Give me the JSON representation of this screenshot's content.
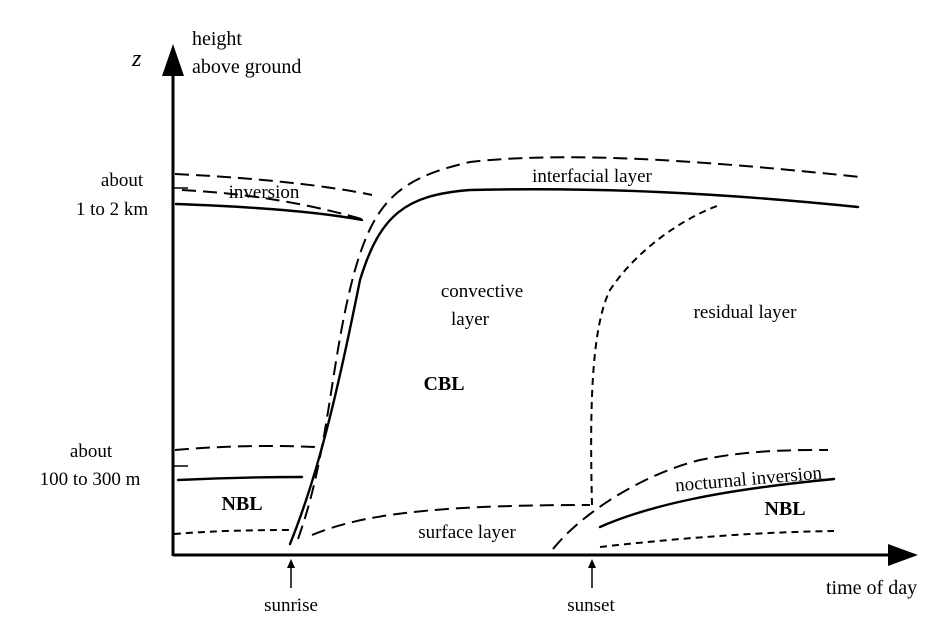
{
  "axes": {
    "z_symbol": "z",
    "y_label_line1": "height",
    "y_label_line2": "above ground",
    "x_label": "time of day"
  },
  "heights": {
    "upper_line1": "about",
    "upper_line2": "1 to 2 km",
    "lower_line1": "about",
    "lower_line2": "100 to 300 m"
  },
  "events": {
    "sunrise": "sunrise",
    "sunset": "sunset"
  },
  "regions": {
    "inversion": "inversion",
    "interfacial_layer": "interfacial layer",
    "convective_line1": "convective",
    "convective_line2": "layer",
    "cbl": "CBL",
    "residual_layer": "residual layer",
    "nbl_left": "NBL",
    "surface_layer": "surface layer",
    "nocturnal_inversion": "nocturnal inversion",
    "nbl_right": "NBL"
  }
}
